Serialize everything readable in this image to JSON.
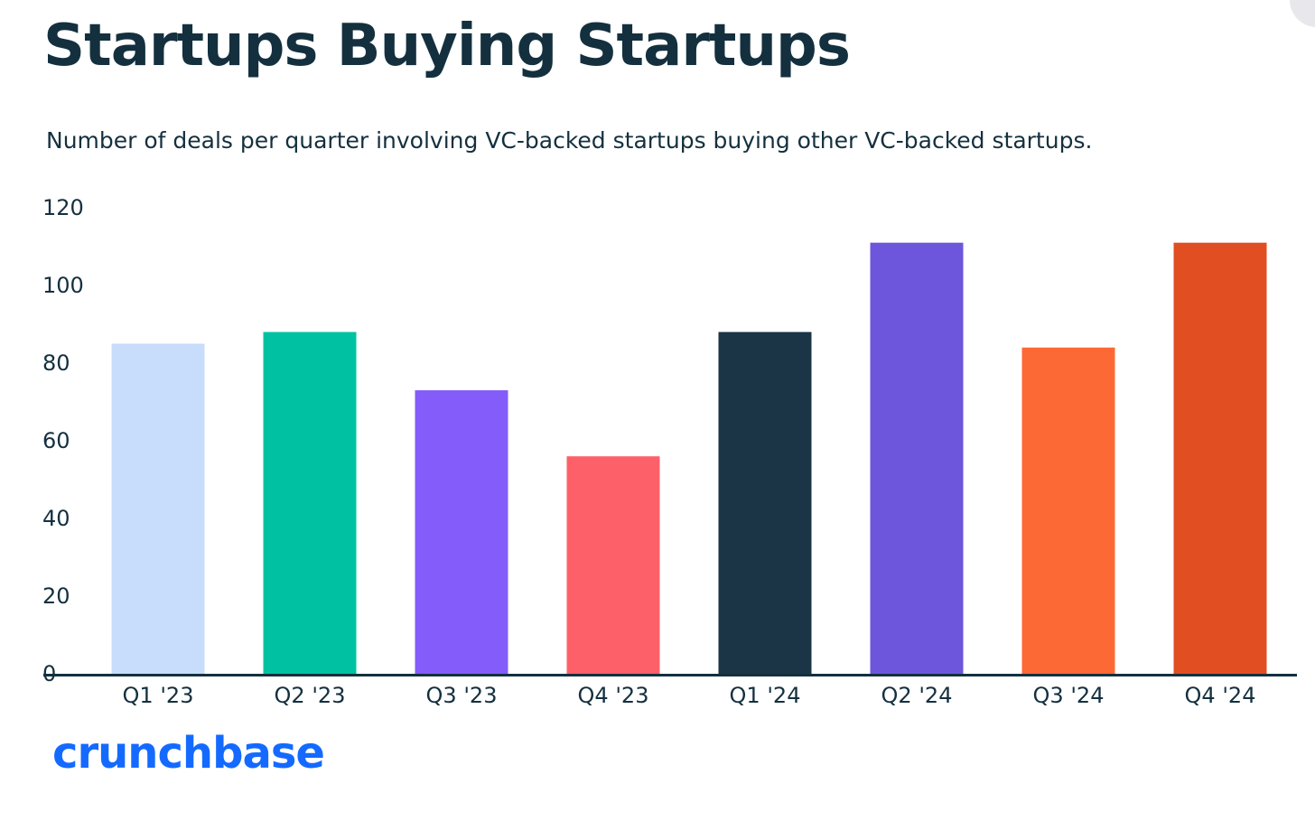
{
  "title": "Startups Buying Startups",
  "subtitle": "Number of deals per quarter involving VC-backed startups buying other VC-backed startups.",
  "brand": {
    "name": "crunchbase",
    "color": "#146aff"
  },
  "chart_data": {
    "type": "bar",
    "categories": [
      "Q1 '23",
      "Q2 '23",
      "Q3 '23",
      "Q4 '23",
      "Q1 '24",
      "Q2 '24",
      "Q3 '24",
      "Q4 '24"
    ],
    "values": [
      85,
      88,
      73,
      56,
      88,
      111,
      84,
      111
    ],
    "bar_colors": [
      "#c8dcfc",
      "#00c2a3",
      "#845cfa",
      "#fe6069",
      "#1b3446",
      "#6d56db",
      "#fd6935",
      "#e04e22"
    ],
    "ylim": [
      0,
      120
    ],
    "yticks": [
      0,
      20,
      40,
      60,
      80,
      100,
      120
    ],
    "xlabel": "",
    "ylabel": "",
    "grid": false,
    "axis_color": "#14303f"
  }
}
